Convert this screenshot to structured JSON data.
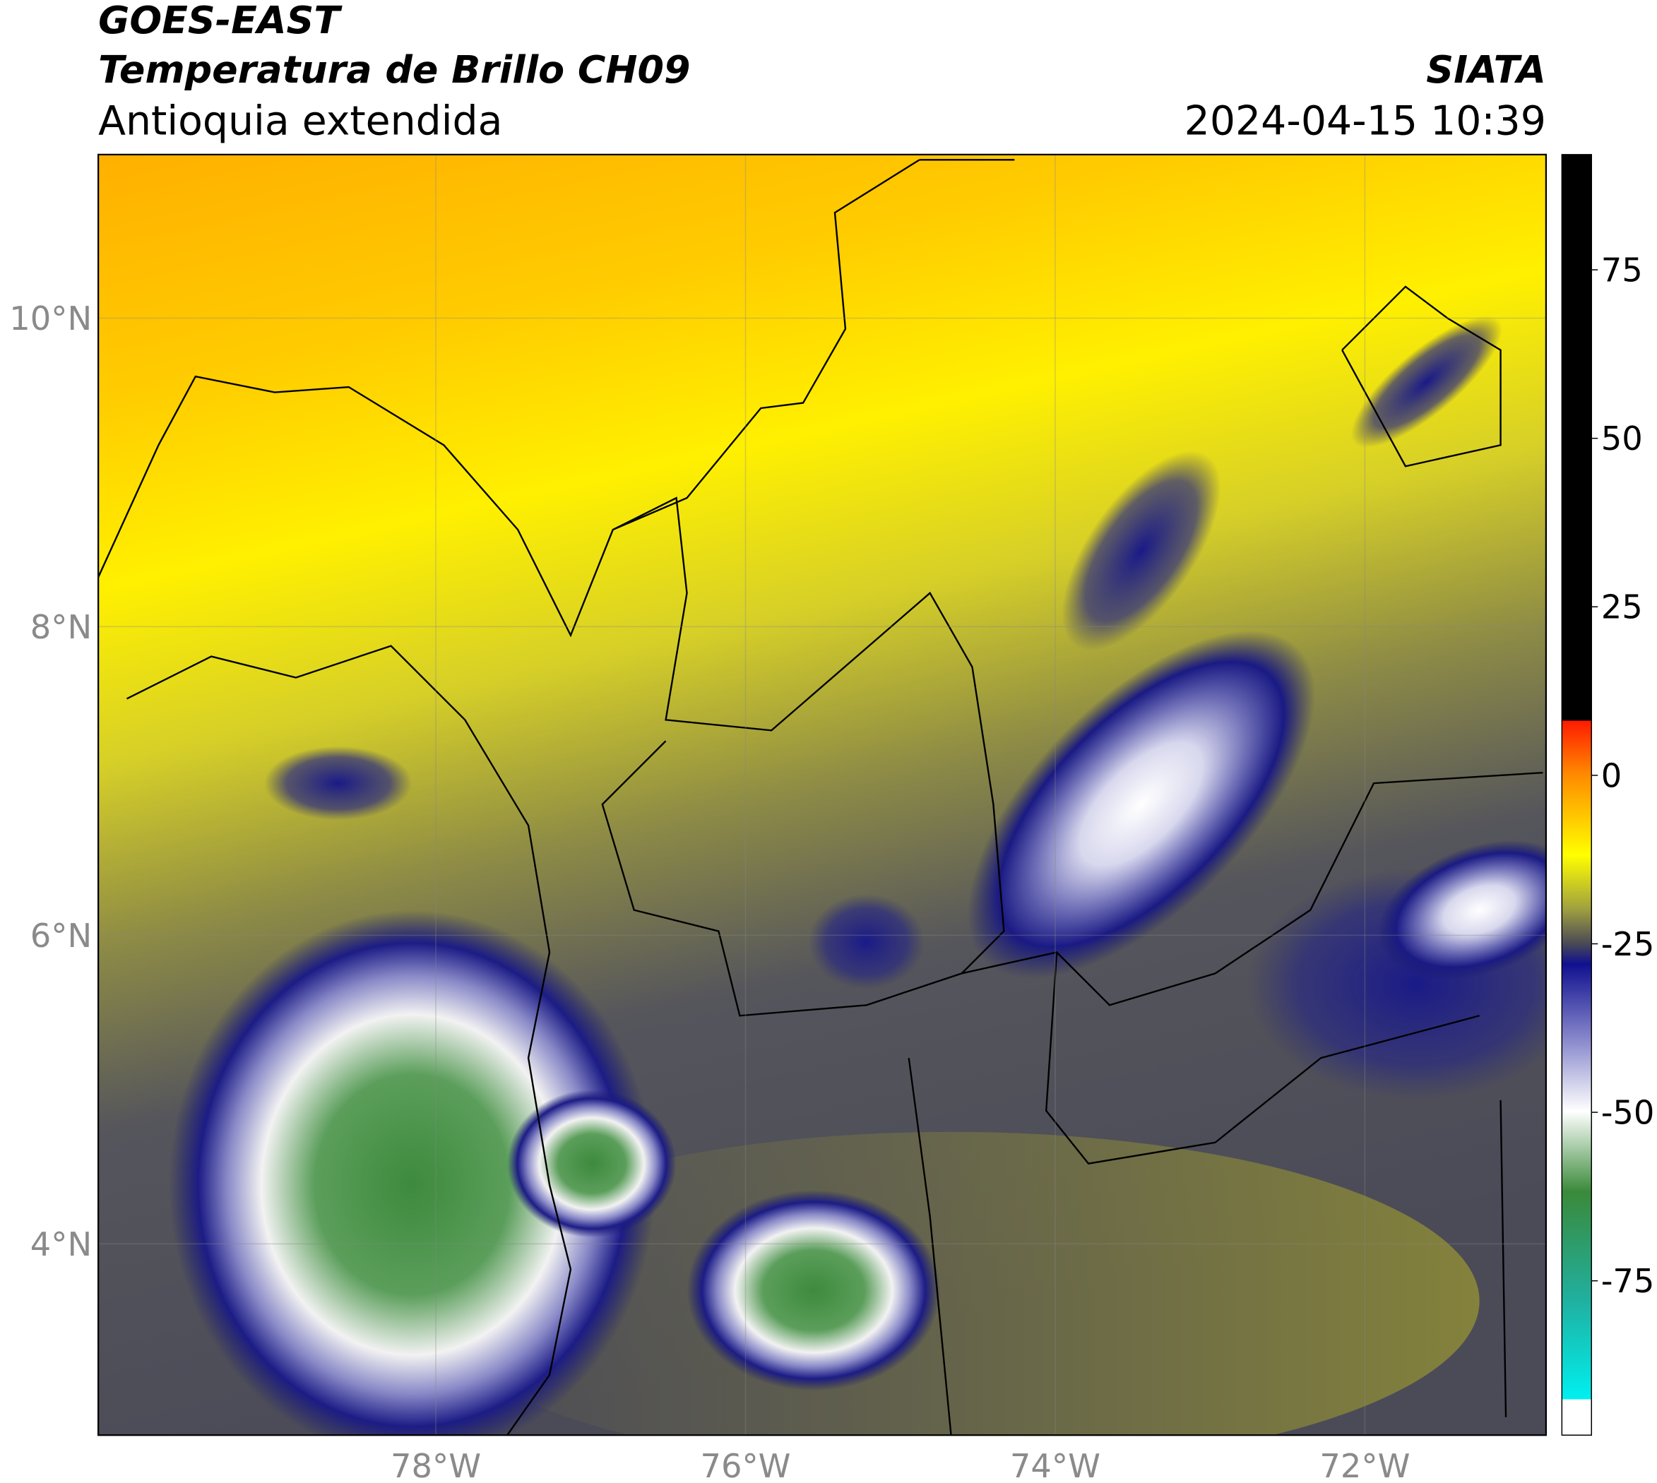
{
  "header": {
    "satellite": "GOES-EAST",
    "product": "Temperatura de Brillo CH09",
    "region": "Antioquia extendida",
    "source": "SIATA",
    "datetime": "2024-04-15 10:39"
  },
  "map": {
    "xlim": [
      -80.18,
      -70.83
    ],
    "ylim": [
      2.76,
      11.06
    ],
    "xticks": [
      {
        "value": -78,
        "label": "78°W"
      },
      {
        "value": -76,
        "label": "76°W"
      },
      {
        "value": -74,
        "label": "74°W"
      },
      {
        "value": -72,
        "label": "72°W"
      }
    ],
    "yticks": [
      {
        "value": 4,
        "label": "4°N"
      },
      {
        "value": 6,
        "label": "6°N"
      },
      {
        "value": 8,
        "label": "8°N"
      },
      {
        "value": 10,
        "label": "10°N"
      }
    ],
    "grid": true
  },
  "colorbar": {
    "lim": [
      -97.9,
      92.1
    ],
    "ticks": [
      75,
      50,
      25,
      0,
      -25,
      -50,
      -75
    ]
  }
}
